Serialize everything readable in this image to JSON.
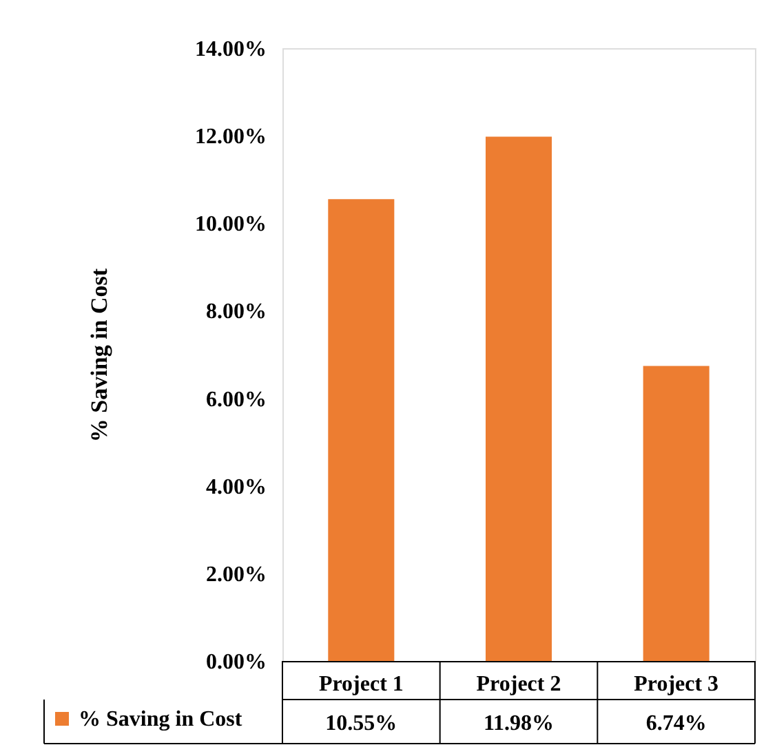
{
  "chart_data": {
    "type": "bar",
    "ylabel": "% Saving in Cost",
    "categories": [
      "Project 1",
      "Project 2",
      "Project 3"
    ],
    "series": [
      {
        "name": "% Saving in Cost",
        "color": "#ed7d31",
        "values": [
          10.55,
          11.98,
          6.74
        ]
      }
    ],
    "value_labels": [
      "10.55%",
      "11.98%",
      "6.74%"
    ],
    "ylim": [
      0,
      14
    ],
    "yticks": [
      {
        "value": 0,
        "label": "0.00%"
      },
      {
        "value": 2,
        "label": "2.00%"
      },
      {
        "value": 4,
        "label": "4.00%"
      },
      {
        "value": 6,
        "label": "6.00%"
      },
      {
        "value": 8,
        "label": "8.00%"
      },
      {
        "value": 10,
        "label": "10.00%"
      },
      {
        "value": 12,
        "label": "12.00%"
      },
      {
        "value": 14,
        "label": "14.00%"
      }
    ],
    "grid": false,
    "legend": "bottom left"
  }
}
